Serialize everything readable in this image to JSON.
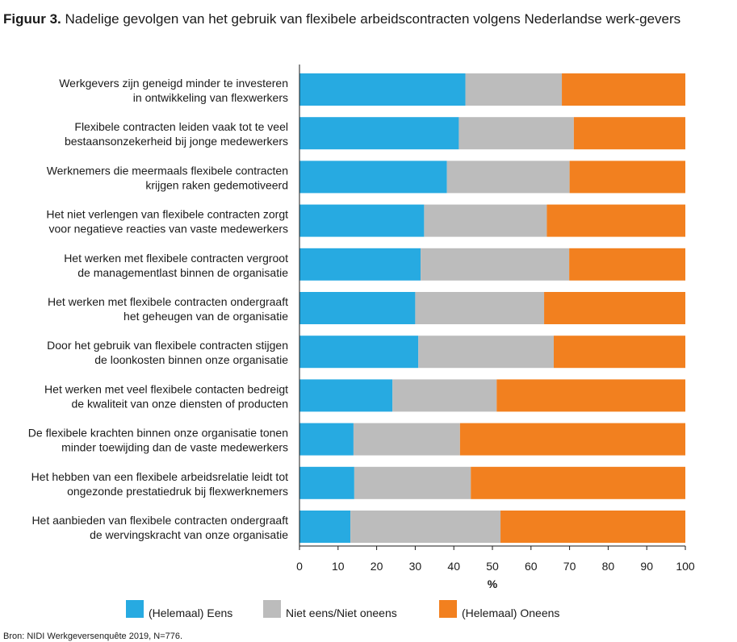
{
  "figure": {
    "number": "Figuur 3.",
    "title": "Nadelige gevolgen van het gebruik van flexibele arbeidscontracten volgens Nederlandse werk-gevers"
  },
  "source": "Bron: NIDI Werkgeversenquête 2019, N=776.",
  "colors": {
    "eens": "#27aae1",
    "neutraal": "#bcbcbc",
    "oneens": "#f2801f"
  },
  "chart_data": {
    "type": "bar",
    "orientation": "horizontal",
    "stacked": true,
    "xlabel": "%",
    "xlim": [
      0,
      100
    ],
    "xticks": [
      "0",
      "10",
      "20",
      "30",
      "40",
      "50",
      "60",
      "70",
      "80",
      "90",
      "100"
    ],
    "legend_position": "bottom",
    "grid": false,
    "categories": [
      [
        "Werkgevers zijn geneigd minder te investeren",
        "in ontwikkeling van flexwerkers"
      ],
      [
        "Flexibele contracten leiden vaak tot te veel",
        "bestaansonzekerheid bij jonge medewerkers"
      ],
      [
        "Werknemers die meermaals flexibele contracten",
        "krijgen raken gedemotiveerd"
      ],
      [
        "Het niet verlengen van flexibele contracten zorgt",
        "voor negatieve reacties van vaste medewerkers"
      ],
      [
        "Het werken met flexibele contracten vergroot",
        "de managementlast binnen de organisatie"
      ],
      [
        "Het werken met flexibele contracten ondergraaft",
        "het geheugen van de organisatie"
      ],
      [
        "Door het gebruik van flexibele contracten stijgen",
        "de loonkosten binnen onze organisatie"
      ],
      [
        "Het werken met veel flexibele contacten bedreigt",
        "de kwaliteit van onze diensten of producten"
      ],
      [
        "De flexibele krachten binnen onze organisatie tonen",
        "minder toewijding dan de vaste medewerkers"
      ],
      [
        "Het hebben van een flexibele arbeidsrelatie leidt tot",
        "ongezonde prestatiedruk bij flexwerknemers"
      ],
      [
        "Het aanbieden van flexibele contracten ondergraaft",
        "de wervingskracht van onze organisatie"
      ]
    ],
    "series": [
      {
        "name": "(Helemaal) Eens",
        "color_key": "eens",
        "values": [
          43,
          41.3,
          38.2,
          32.3,
          31.4,
          30,
          30.8,
          24.1,
          14,
          14.2,
          13.2
        ]
      },
      {
        "name": "Niet eens/Niet oneens",
        "color_key": "neutraal",
        "values": [
          25,
          29.8,
          31.8,
          31.8,
          38.5,
          33.4,
          35.1,
          27,
          27.6,
          30.2,
          38.9
        ]
      },
      {
        "name": "(Helemaal) Oneens",
        "color_key": "oneens",
        "values": [
          32,
          28.9,
          30,
          35.9,
          30.1,
          36.6,
          34.1,
          48.9,
          58.4,
          55.6,
          47.9
        ]
      }
    ]
  }
}
